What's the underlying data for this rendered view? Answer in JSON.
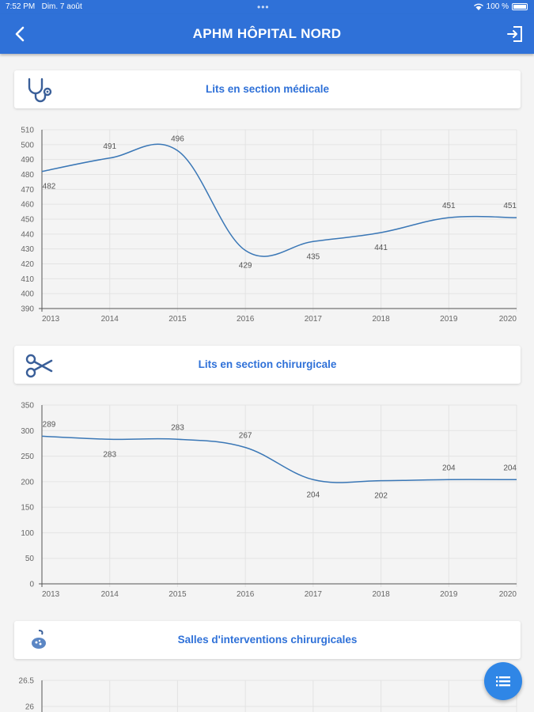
{
  "status_bar": {
    "time": "7:52 PM",
    "date": "Dim. 7 août",
    "battery": "100 %"
  },
  "app_bar": {
    "title": "APHM HÔPITAL NORD",
    "back_icon": "chevron-left-icon",
    "logout_icon": "logout-icon"
  },
  "colors": {
    "primary": "#2f71d8",
    "line": "#3a77b6",
    "grid": "#e3e3e3",
    "fab": "#2f86e6"
  },
  "sections": [
    {
      "title": "Lits en section médicale",
      "icon": "stethoscope-icon"
    },
    {
      "title": "Lits en section chirurgicale",
      "icon": "scissors-icon"
    },
    {
      "title": "Salles d'interventions chirurgicales",
      "icon": "surgical-lamp-icon"
    }
  ],
  "chart_data": [
    {
      "type": "line",
      "x": [
        "2013",
        "2014",
        "2015",
        "2016",
        "2017",
        "2018",
        "2019",
        "2020"
      ],
      "values": [
        482,
        491,
        496,
        429,
        435,
        441,
        451,
        451
      ],
      "ylim": [
        390,
        510
      ],
      "yticks": [
        "390",
        "400",
        "410",
        "420",
        "430",
        "440",
        "450",
        "460",
        "470",
        "480",
        "490",
        "500",
        "510"
      ],
      "grid": true
    },
    {
      "type": "line",
      "x": [
        "2013",
        "2014",
        "2015",
        "2016",
        "2017",
        "2018",
        "2019",
        "2020"
      ],
      "values": [
        289,
        283,
        283,
        267,
        204,
        202,
        204,
        204
      ],
      "ylim": [
        0,
        350
      ],
      "yticks": [
        "0",
        "50",
        "100",
        "150",
        "200",
        "250",
        "300",
        "350"
      ],
      "grid": true
    },
    {
      "type": "line",
      "x": [],
      "values": [],
      "yticks": [
        "26",
        "26.5"
      ],
      "grid": true
    }
  ],
  "fab": {
    "icon": "list-icon"
  }
}
